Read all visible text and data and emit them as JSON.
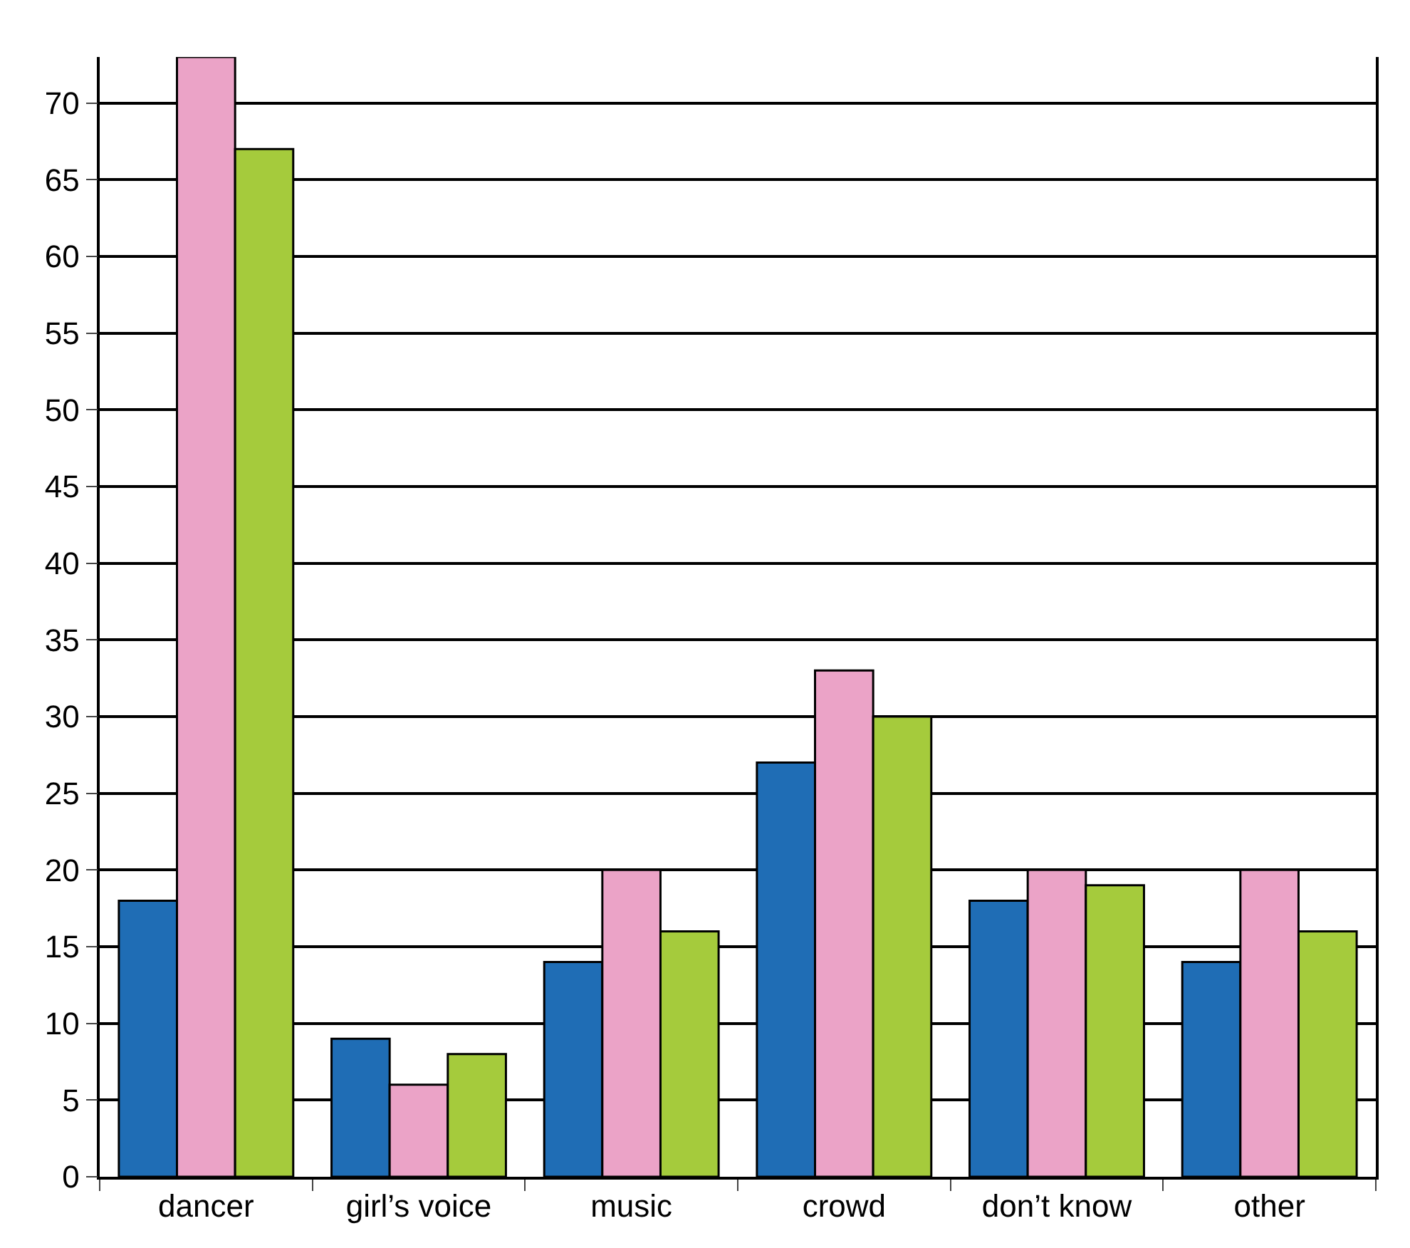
{
  "chart_data": {
    "type": "bar",
    "categories": [
      "dancer",
      "girl’s voice",
      "music",
      "crowd",
      "don’t know",
      "other"
    ],
    "series": [
      {
        "color": "#1f6db5",
        "values": [
          18,
          9,
          14,
          27,
          18,
          14
        ]
      },
      {
        "color": "#eba3c7",
        "values": [
          73,
          6,
          20,
          33,
          20,
          20
        ]
      },
      {
        "color": "#a5cb3c",
        "values": [
          67,
          8,
          16,
          30,
          19,
          16
        ]
      }
    ],
    "ylim": [
      0,
      73
    ],
    "yticks": [
      0,
      5,
      10,
      15,
      20,
      25,
      30,
      35,
      40,
      45,
      50,
      55,
      60,
      65,
      70
    ],
    "grid": "y",
    "legend": false
  }
}
